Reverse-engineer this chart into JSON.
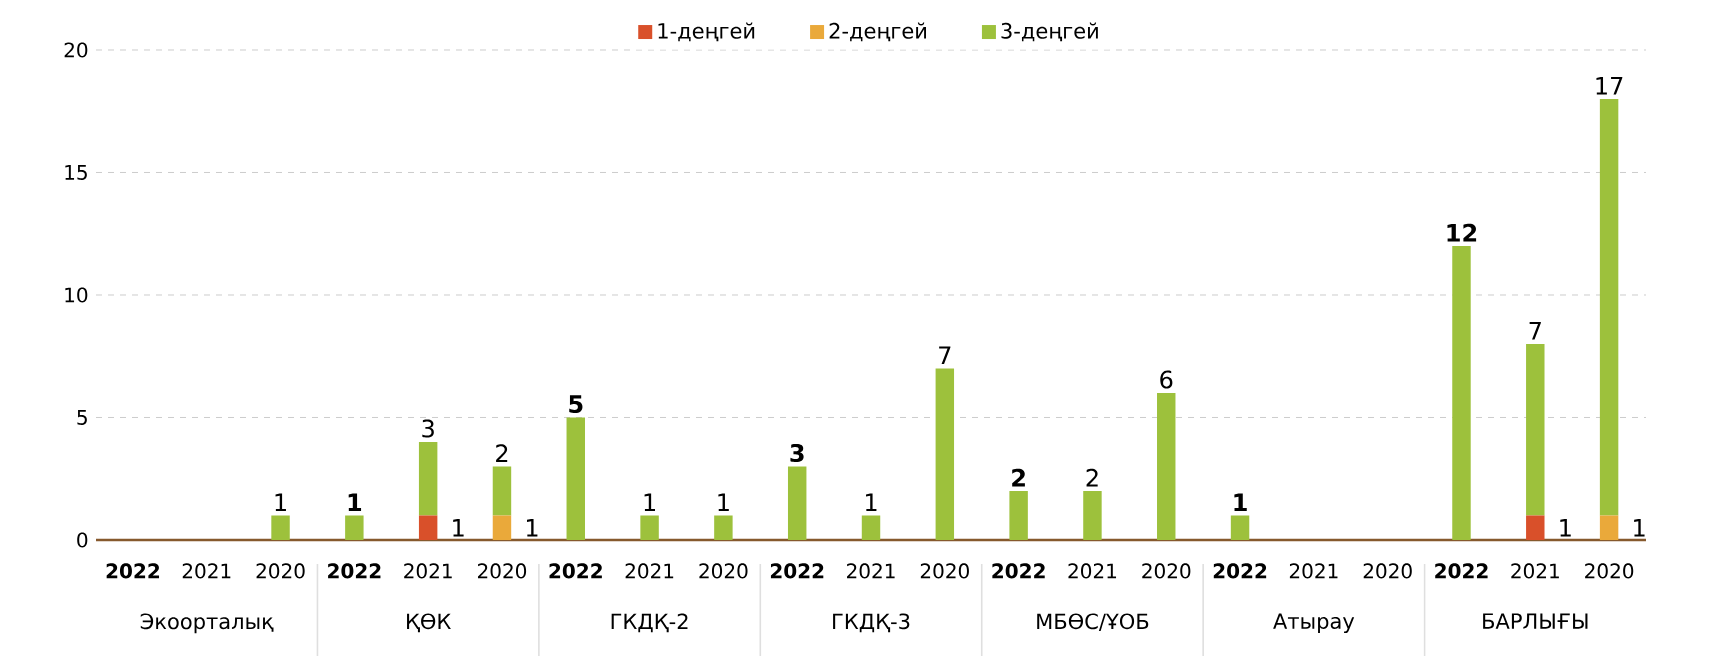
{
  "chart_data": {
    "type": "bar",
    "stacked": true,
    "categories": [
      "2022",
      "2021",
      "2020",
      "2022",
      "2021",
      "2020",
      "2022",
      "2021",
      "2020",
      "2022",
      "2021",
      "2020",
      "2022",
      "2021",
      "2020",
      "2022",
      "2021",
      "2020",
      "2022",
      "2021",
      "2020"
    ],
    "series": [
      {
        "name": "1-деңгей",
        "color": "#d9502a",
        "values": [
          0,
          0,
          0,
          0,
          1,
          0,
          0,
          0,
          0,
          0,
          0,
          0,
          0,
          0,
          0,
          0,
          0,
          0,
          0,
          1,
          0
        ],
        "value_labels": [
          null,
          null,
          null,
          null,
          "1",
          null,
          null,
          null,
          null,
          null,
          null,
          null,
          null,
          null,
          null,
          null,
          null,
          null,
          null,
          "1",
          null
        ]
      },
      {
        "name": "2-деңгей",
        "color": "#eaa93a",
        "values": [
          0,
          0,
          0,
          0,
          0,
          1,
          0,
          0,
          0,
          0,
          0,
          0,
          0,
          0,
          0,
          0,
          0,
          0,
          0,
          0,
          1
        ],
        "value_labels": [
          null,
          null,
          null,
          null,
          null,
          "1",
          null,
          null,
          null,
          null,
          null,
          null,
          null,
          null,
          null,
          null,
          null,
          null,
          null,
          null,
          "1"
        ]
      },
      {
        "name": "3-деңгей",
        "color": "#9dc13c",
        "values": [
          0,
          0,
          1,
          1,
          3,
          2,
          5,
          1,
          1,
          3,
          1,
          7,
          2,
          2,
          6,
          1,
          0,
          0,
          12,
          7,
          17
        ],
        "value_labels": [
          null,
          null,
          "1",
          "1",
          "3",
          "2",
          "5",
          "1",
          "1",
          "3",
          "1",
          "7",
          "2",
          "2",
          "6",
          "1",
          null,
          null,
          "12",
          "7",
          "17"
        ]
      }
    ],
    "ylim": [
      0,
      20
    ],
    "yticks": [
      0,
      5,
      10,
      15,
      20
    ],
    "grid": "y",
    "legend": "top",
    "annotations": [
      "Экоорталық",
      "ҚӨК",
      "ГКДҚ-2",
      "ГКДҚ-3",
      "МБӨС/ҰОБ",
      "Атырау",
      "БАРЛЫҒЫ"
    ]
  }
}
